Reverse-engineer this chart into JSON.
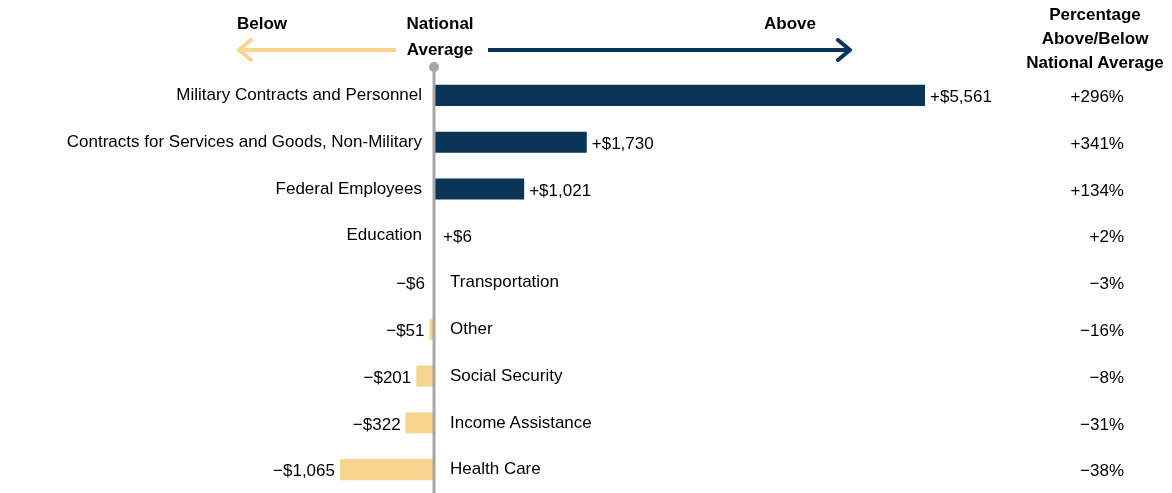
{
  "chart_data": {
    "type": "bar",
    "orientation": "horizontal",
    "categories": [
      "Military Contracts and Personnel",
      "Contracts for Services and Goods, Non-Military",
      "Federal Employees",
      "Education",
      "Transportation",
      "Other",
      "Social Security",
      "Income Assistance",
      "Health Care"
    ],
    "values": [
      5561,
      1730,
      1021,
      6,
      -6,
      -51,
      -201,
      -322,
      -1065
    ],
    "value_labels": [
      "+$5,561",
      "+$1,730",
      "+$1,021",
      "+$6",
      "−$6",
      "−$51",
      "−$201",
      "−$322",
      "−$1,065"
    ],
    "colors": [
      "#0a3556",
      "#0a3556",
      "#0a3556",
      "#0a3556",
      "#f7d58e",
      "#f7d58e",
      "#f7d58e",
      "#f7d58e",
      "#f7d58e"
    ],
    "tick_labels": "y",
    "ref_lines": [
      {
        "axis": "x",
        "value": 0,
        "label": "National Average",
        "color": "#a6a6a6"
      }
    ],
    "annotations": [
      "Below",
      "Above",
      "Percentage Above/Below National Average",
      "+296%",
      "+341%",
      "+134%",
      "+2%",
      "−3%",
      "−16%",
      "−8%",
      "−31%",
      "−38%"
    ]
  }
}
